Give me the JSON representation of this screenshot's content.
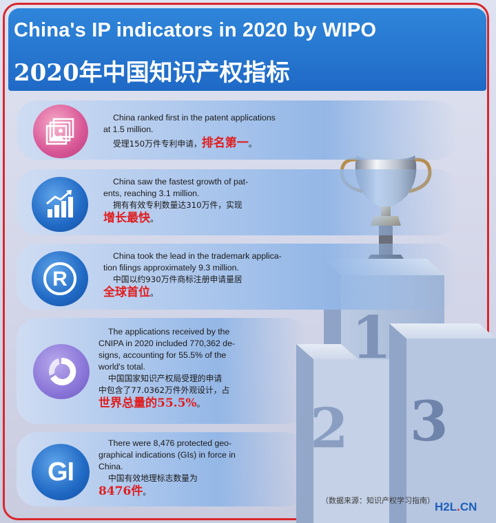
{
  "header": {
    "title_en": "China's IP indicators in 2020 by WIPO",
    "title_zh": "2020年中国知识产权指标"
  },
  "items": [
    {
      "icon": "image-gallery-icon",
      "en_lines": [
        "China ranked first in the patent applications",
        "at 1.5 million."
      ],
      "zh_plain": "受理150万件专利申请，",
      "zh_highlight": "排名第一",
      "zh_tail": "。"
    },
    {
      "icon": "growth-chart-icon",
      "en_lines": [
        "China saw the fastest growth of pat-",
        "ents, reaching 3.1 million."
      ],
      "zh_plain": "拥有有效专利数量达310万件，实现",
      "zh_highlight": "增长最快",
      "zh_tail": "。"
    },
    {
      "icon": "registered-trademark-icon",
      "en_lines": [
        "China took the lead in the trademark applica-",
        "tion filings  approximately 9.3 million."
      ],
      "zh_plain": "中国以约930万件商标注册申请量居",
      "zh_highlight": "全球首位",
      "zh_tail": "。"
    },
    {
      "icon": "ring-chart-icon",
      "en_lines": [
        "The applications received by the",
        "CNIPA in 2020 included 770,362 de-",
        "signs, accounting for 55.5% of the",
        "world's total."
      ],
      "zh_lines": [
        "中国国家知识产权局受理的申请",
        "中包含了77.0362万件外观设计，占"
      ],
      "zh_highlight": "世界总量的55.5%",
      "zh_tail": "。"
    },
    {
      "icon": "gi-badge-icon",
      "icon_text": "GI",
      "en_lines": [
        "There were 8,476 protected geo-",
        "graphical indications (GIs) in force in",
        "China."
      ],
      "zh_plain": "中国有效地理标志数量为",
      "zh_highlight": "8476件",
      "zh_tail": "。"
    }
  ],
  "podium": {
    "place_1": "1",
    "place_2": "2",
    "place_3": "3"
  },
  "footer": {
    "credit": "（数据来源：知识产权学习指南）",
    "logo_a": "H2L",
    "logo_dot": ".",
    "logo_b": "CN"
  },
  "colors": {
    "header_blue": "#2477d0",
    "frame_red": "#d9262c",
    "highlight_red": "#e01e1e"
  }
}
